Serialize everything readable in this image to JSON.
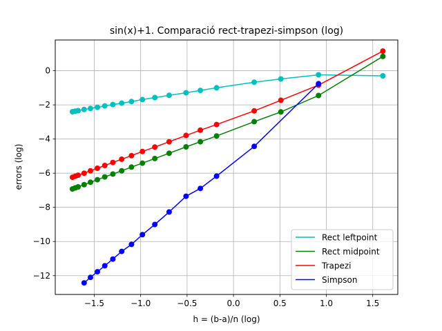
{
  "chart_data": {
    "type": "line",
    "title": "sin(x)+1. Comparació rect-trapezi-simpson (log)",
    "xlabel": "h = (b-a)/n (log)",
    "ylabel": "errors (log)",
    "xlim": [
      -1.92,
      1.77
    ],
    "ylim": [
      -13.1,
      1.8
    ],
    "xticks": [
      -1.5,
      -1.0,
      -0.5,
      0.0,
      0.5,
      1.0,
      1.5
    ],
    "xtick_labels": [
      "−1.5",
      "−1.0",
      "−0.5",
      "0.0",
      "0.5",
      "1.0",
      "1.5"
    ],
    "yticks": [
      -12,
      -10,
      -8,
      -6,
      -4,
      -2,
      0
    ],
    "ytick_labels": [
      "−12",
      "−10",
      "−8",
      "−6",
      "−4",
      "−2",
      "0"
    ],
    "grid": true,
    "legend_position": "bottom-right",
    "x": [
      1.6094,
      0.9163,
      0.5108,
      0.2231,
      -0.1823,
      -0.3567,
      -0.5108,
      -0.6931,
      -0.8473,
      -0.9808,
      -1.0986,
      -1.204,
      -1.2993,
      -1.3863,
      -1.4663,
      -1.5404,
      -1.6094,
      -1.674,
      -1.7047,
      -1.7346
    ],
    "series": [
      {
        "name": "Rect leftpoint",
        "color": "#00bfbf",
        "y": [
          -0.3,
          -0.24,
          -0.48,
          -0.67,
          -1.0,
          -1.15,
          -1.29,
          -1.44,
          -1.57,
          -1.69,
          -1.8,
          -1.9,
          -1.98,
          -2.06,
          -2.14,
          -2.21,
          -2.27,
          -2.34,
          -2.37,
          -2.4
        ]
      },
      {
        "name": "Rect midpoint",
        "color": "#008000",
        "y": [
          0.84,
          -1.45,
          -2.41,
          -2.98,
          -3.82,
          -4.16,
          -4.46,
          -4.83,
          -5.14,
          -5.41,
          -5.64,
          -5.86,
          -6.05,
          -6.22,
          -6.38,
          -6.53,
          -6.67,
          -6.8,
          -6.86,
          -6.92
        ]
      },
      {
        "name": "Trapezi",
        "color": "#ff0000",
        "y": [
          1.15,
          -0.84,
          -1.73,
          -2.35,
          -3.15,
          -3.48,
          -3.79,
          -4.16,
          -4.47,
          -4.73,
          -4.97,
          -5.18,
          -5.37,
          -5.55,
          -5.71,
          -5.86,
          -6.0,
          -6.12,
          -6.18,
          -6.24
        ]
      },
      {
        "name": "Simpson",
        "color": "#0000ff",
        "y": [
          null,
          -0.76,
          null,
          -4.43,
          -6.17,
          -6.89,
          -7.35,
          -8.27,
          -9.0,
          -9.6,
          -10.17,
          -10.58,
          -11.03,
          -11.42,
          -11.77,
          -12.1,
          -12.42,
          null,
          null,
          null
        ]
      }
    ]
  }
}
